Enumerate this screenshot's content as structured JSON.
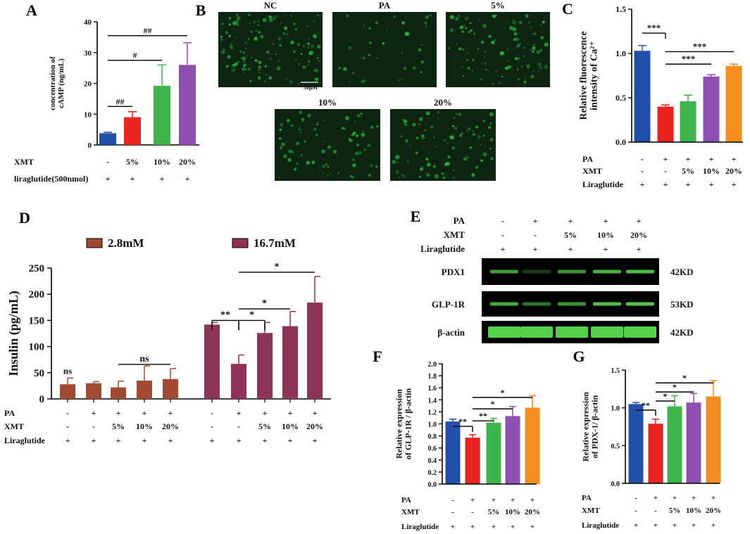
{
  "panels": {
    "A": "A",
    "B": "B",
    "C": "C",
    "D": "D",
    "E": "E",
    "F": "F",
    "G": "G"
  },
  "colors": {
    "blue": "#2150a8",
    "red": "#e8231d",
    "green": "#3db54a",
    "purple": "#8e4fb0",
    "orange": "#f28d1e",
    "brown": "#a04a32",
    "maroon": "#8e3556",
    "cell": "#0c2410",
    "blot": "#55d24a"
  },
  "panel_b": {
    "labels": [
      "NC",
      "PA",
      "5%",
      "10%",
      "20%"
    ],
    "scale_bar": "50μM"
  },
  "panel_e": {
    "cond_labels": [
      "PA",
      "XMT",
      "Liraglutide"
    ],
    "cond": [
      [
        "-",
        "+",
        "+",
        "+",
        "+"
      ],
      [
        "-",
        "-",
        "5%",
        "10%",
        "20%"
      ],
      [
        "+",
        "+",
        "+",
        "+",
        "+"
      ]
    ],
    "bands": [
      {
        "name": "PDX1",
        "kd": "42KD",
        "intensity": [
          0.75,
          0.3,
          0.7,
          0.85,
          0.9
        ]
      },
      {
        "name": "GLP-1R",
        "kd": "53KD",
        "intensity": [
          0.8,
          0.55,
          0.7,
          0.9,
          0.95
        ]
      },
      {
        "name": "β-actin",
        "kd": "42KD",
        "intensity": [
          1,
          1,
          1,
          1,
          1
        ]
      }
    ]
  },
  "chart_data": [
    {
      "id": "A",
      "type": "bar",
      "ylabel": "concentration of cAMP (ng/mL)",
      "ylim": [
        0,
        40
      ],
      "yticks": [
        "0",
        "10",
        "20",
        "30",
        "40"
      ],
      "values": [
        3.8,
        9.0,
        19.2,
        26.0
      ],
      "errors": [
        0.3,
        1.8,
        6.8,
        7.2
      ],
      "colors": [
        "#2150a8",
        "#e8231d",
        "#3db54a",
        "#8e4fb0"
      ],
      "cond_labels": [
        "XMT",
        "liraglutide(500nmol)"
      ],
      "cond": [
        [
          "-",
          "5%",
          "10%",
          "20%"
        ],
        [
          "+",
          "+",
          "+",
          "+"
        ]
      ],
      "annotations": [
        {
          "from": 0,
          "to": 1,
          "y": 12.5,
          "text": "##"
        },
        {
          "from": 0,
          "to": 2,
          "y": 27.5,
          "text": "#"
        },
        {
          "from": 0,
          "to": 3,
          "y": 35.5,
          "text": "##"
        }
      ]
    },
    {
      "id": "C",
      "type": "bar",
      "ylabel": "Relative fluorescence intensity of Ca²⁺",
      "ylim": [
        0,
        1.5
      ],
      "yticks": [
        "0.0",
        "0.5",
        "1.0",
        "1.5"
      ],
      "values": [
        1.03,
        0.4,
        0.46,
        0.74,
        0.86
      ],
      "errors": [
        0.06,
        0.02,
        0.07,
        0.02,
        0.02
      ],
      "colors": [
        "#2150a8",
        "#e8231d",
        "#3db54a",
        "#8e4fb0",
        "#f28d1e"
      ],
      "cond_labels": [
        "PA",
        "XMT",
        "Liraglutide"
      ],
      "cond": [
        [
          "-",
          "+",
          "+",
          "+",
          "+"
        ],
        [
          "-",
          "-",
          "5%",
          "10%",
          "20%"
        ],
        [
          "+",
          "+",
          "+",
          "+",
          "+"
        ]
      ],
      "annotations": [
        {
          "from": 0,
          "to": 1,
          "y": 1.23,
          "text": "***",
          "bracket": true
        },
        {
          "from": 1,
          "to": 3,
          "y": 0.88,
          "text": "***"
        },
        {
          "from": 1,
          "to": 4,
          "y": 1.02,
          "text": "***"
        }
      ]
    },
    {
      "id": "D",
      "type": "bar",
      "ylabel": "Insulin (pg/mL)",
      "ylim": [
        0,
        250
      ],
      "yticks": [
        "0",
        "50",
        "100",
        "150",
        "200",
        "250"
      ],
      "series": [
        {
          "name": "2.8mM",
          "color": "#a04a32",
          "values": [
            28,
            30,
            22,
            35,
            38
          ],
          "errors": [
            12,
            3,
            12,
            28,
            20
          ]
        },
        {
          "name": "16.7mM",
          "color": "#8e3556",
          "values": [
            142,
            67,
            126,
            139,
            184
          ],
          "errors": [
            4,
            17,
            20,
            28,
            50
          ]
        }
      ],
      "cond_labels": [
        "PA",
        "XMT",
        "Liraglutide"
      ],
      "cond": [
        [
          "-",
          "+",
          "+",
          "+",
          "+"
        ],
        [
          "-",
          "-",
          "5%",
          "10%",
          "20%"
        ],
        [
          "+",
          "+",
          "+",
          "+",
          "+"
        ]
      ],
      "annotations": [
        {
          "text": "ns",
          "group": 0,
          "over": 0,
          "y": 48
        },
        {
          "text": "ns",
          "group": 0,
          "from": 2,
          "to": 4,
          "y": 66
        },
        {
          "text": "**",
          "group": 1,
          "from": 0,
          "to": 1,
          "y": 150,
          "bracket": true
        },
        {
          "text": "*",
          "group": 1,
          "from": 1,
          "to": 2,
          "y": 150,
          "bracket": true
        },
        {
          "text": "*",
          "group": 1,
          "from": 1,
          "to": 3,
          "y": 172
        },
        {
          "text": "*",
          "group": 1,
          "from": 1,
          "to": 4,
          "y": 242
        }
      ]
    },
    {
      "id": "F",
      "type": "bar",
      "ylabel": "Relative expression of GLP-1R / β-actin",
      "ylim": [
        0,
        2.0
      ],
      "yticks": [
        "0.0",
        "0.2",
        "0.4",
        "0.6",
        "0.8",
        "1.0",
        "1.2",
        "1.4",
        "1.6",
        "1.8",
        "2.0"
      ],
      "values": [
        1.04,
        0.77,
        1.02,
        1.13,
        1.27
      ],
      "errors": [
        0.04,
        0.05,
        0.07,
        0.16,
        0.2
      ],
      "colors": [
        "#2150a8",
        "#e8231d",
        "#3db54a",
        "#8e4fb0",
        "#f28d1e"
      ],
      "cond_labels": [
        "PA",
        "XMT",
        "Liraglutide"
      ],
      "cond": [
        [
          "-",
          "+",
          "+",
          "+",
          "+"
        ],
        [
          "-",
          "-",
          "5%",
          "10%",
          "20%"
        ],
        [
          "+",
          "+",
          "+",
          "+",
          "+"
        ]
      ],
      "annotations": [
        {
          "from": 0,
          "to": 1,
          "y": 0.96,
          "text": "**",
          "bracket": true
        },
        {
          "from": 1,
          "to": 2,
          "y": 1.05,
          "text": "**"
        },
        {
          "from": 1,
          "to": 3,
          "y": 1.25,
          "text": "*"
        },
        {
          "from": 1,
          "to": 4,
          "y": 1.44,
          "text": "*"
        }
      ]
    },
    {
      "id": "G",
      "type": "bar",
      "ylabel": "Relative expression of PDX-1/ β-actin",
      "ylim": [
        0,
        1.5
      ],
      "yticks": [
        "0.0",
        "0.5",
        "1.0",
        "1.5"
      ],
      "values": [
        1.05,
        0.79,
        1.02,
        1.07,
        1.15
      ],
      "errors": [
        0.02,
        0.06,
        0.14,
        0.12,
        0.21
      ],
      "colors": [
        "#2150a8",
        "#e8231d",
        "#3db54a",
        "#8e4fb0",
        "#f28d1e"
      ],
      "cond_labels": [
        "PA",
        "XMT",
        "Liraglutide"
      ],
      "cond": [
        [
          "-",
          "+",
          "+",
          "+",
          "+"
        ],
        [
          "-",
          "-",
          "5%",
          "10%",
          "20%"
        ],
        [
          "+",
          "+",
          "+",
          "+",
          "+"
        ]
      ],
      "annotations": [
        {
          "from": 0,
          "to": 1,
          "y": 0.97,
          "text": "**",
          "bracket": true
        },
        {
          "from": 1,
          "to": 2,
          "y": 1.09,
          "text": "*"
        },
        {
          "from": 1,
          "to": 3,
          "y": 1.21,
          "text": "*"
        },
        {
          "from": 1,
          "to": 4,
          "y": 1.33,
          "text": "*"
        }
      ]
    }
  ]
}
